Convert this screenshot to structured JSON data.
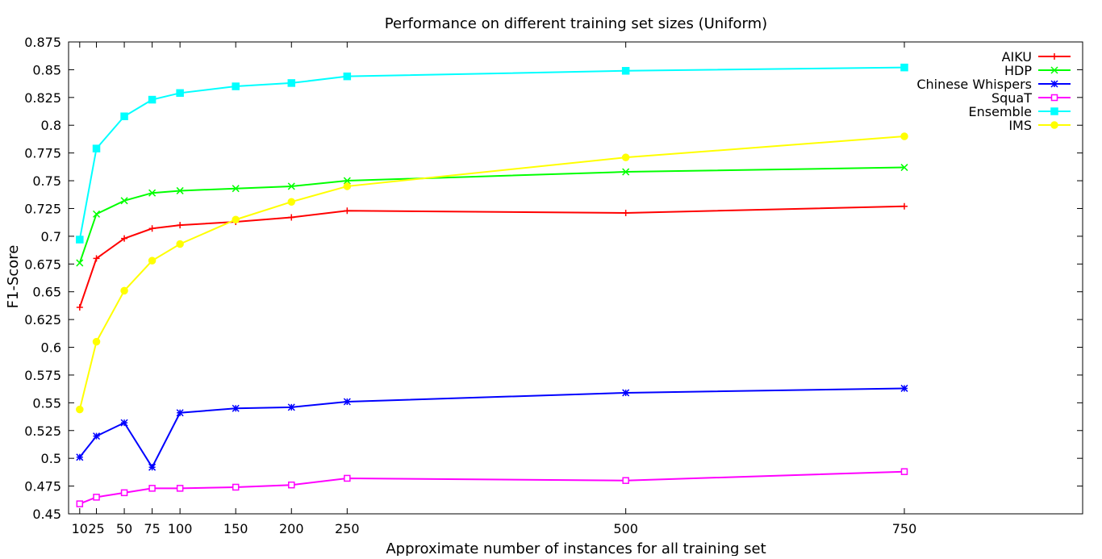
{
  "chart_data": {
    "type": "line",
    "title": "Performance on different training set sizes (Uniform)",
    "xlabel": "Approximate number of instances for all training set",
    "ylabel": "F1-Score",
    "xlim": [
      0,
      910
    ],
    "ylim": [
      0.45,
      0.875
    ],
    "xticks": [
      10,
      25,
      50,
      75,
      100,
      150,
      200,
      250,
      500,
      750
    ],
    "xtick_labels": [
      "10",
      "25",
      "50",
      "75",
      "100",
      "150",
      "200",
      "250",
      "500",
      "750"
    ],
    "yticks": [
      0.45,
      0.475,
      0.5,
      0.525,
      0.55,
      0.575,
      0.6,
      0.625,
      0.65,
      0.675,
      0.7,
      0.725,
      0.75,
      0.775,
      0.8,
      0.825,
      0.85,
      0.875
    ],
    "ytick_labels": [
      "0.45",
      "0.475",
      "0.5",
      "0.525",
      "0.55",
      "0.575",
      "0.6",
      "0.625",
      "0.65",
      "0.675",
      "0.7",
      "0.725",
      "0.75",
      "0.775",
      "0.8",
      "0.825",
      "0.85",
      "0.875"
    ],
    "grid": false,
    "legend_position": "top-right",
    "x": [
      10,
      25,
      50,
      75,
      100,
      150,
      200,
      250,
      500,
      750
    ],
    "series": [
      {
        "name": "AIKU",
        "color": "#ff0000",
        "marker": "plus",
        "values": [
          0.636,
          0.68,
          0.698,
          0.707,
          0.71,
          0.713,
          0.717,
          0.723,
          0.721,
          0.727
        ]
      },
      {
        "name": "HDP",
        "color": "#00ff00",
        "marker": "cross",
        "values": [
          0.676,
          0.72,
          0.732,
          0.739,
          0.741,
          0.743,
          0.745,
          0.75,
          0.758,
          0.762
        ]
      },
      {
        "name": "Chinese Whispers",
        "color": "#0000ff",
        "marker": "star",
        "values": [
          0.501,
          0.52,
          0.532,
          0.492,
          0.541,
          0.545,
          0.546,
          0.551,
          0.559,
          0.563
        ]
      },
      {
        "name": "SquaT",
        "color": "#ff00ff",
        "marker": "square-open",
        "values": [
          0.459,
          0.465,
          0.469,
          0.473,
          0.473,
          0.474,
          0.476,
          0.482,
          0.48,
          0.488
        ]
      },
      {
        "name": "Ensemble",
        "color": "#00ffff",
        "marker": "square-filled",
        "values": [
          0.697,
          0.779,
          0.808,
          0.823,
          0.829,
          0.835,
          0.838,
          0.844,
          0.849,
          0.852
        ]
      },
      {
        "name": "IMS",
        "color": "#ffff00",
        "marker": "circle-filled",
        "values": [
          0.544,
          0.605,
          0.651,
          0.678,
          0.693,
          0.715,
          0.731,
          0.745,
          0.771,
          0.79
        ]
      }
    ]
  }
}
